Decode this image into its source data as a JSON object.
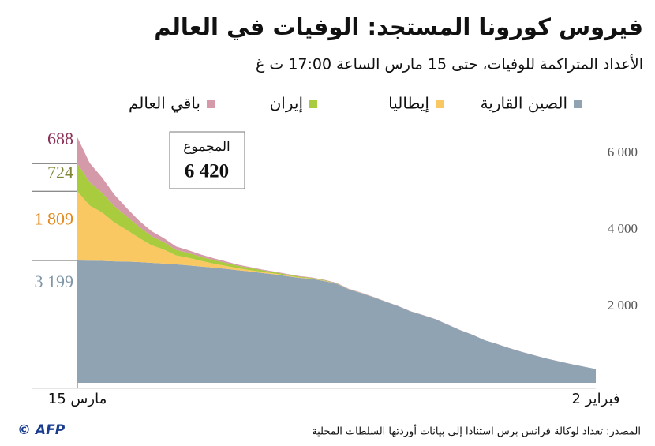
{
  "chart_data": {
    "type": "stacked-area",
    "title": "فيروس كورونا المستجد: الوفيات في العالم",
    "subtitle": "الأعداد المتراكمة للوفيات، حتى 15 مارس الساعة 17:00 ت غ",
    "categories": [
      "2 فبراير",
      null,
      null,
      null,
      null,
      null,
      null,
      null,
      null,
      null,
      null,
      null,
      null,
      null,
      null,
      null,
      null,
      null,
      null,
      null,
      null,
      null,
      null,
      null,
      null,
      null,
      null,
      null,
      null,
      null,
      null,
      null,
      null,
      null,
      null,
      null,
      null,
      null,
      null,
      null,
      null,
      null,
      "15 مارس"
    ],
    "series": [
      {
        "name": "الصين القارية",
        "color": "#8fa3b3",
        "label_color": "#8097a8",
        "values": [
          361,
          425,
          490,
          563,
          636,
          722,
          811,
          908,
          1016,
          1113,
          1259,
          1380,
          1523,
          1665,
          1770,
          1868,
          2004,
          2118,
          2236,
          2345,
          2442,
          2592,
          2663,
          2715,
          2744,
          2788,
          2835,
          2870,
          2912,
          2943,
          2981,
          3012,
          3042,
          3070,
          3097,
          3119,
          3136,
          3158,
          3169,
          3176,
          3189,
          3194,
          3199
        ],
        "value_labels": [
          null,
          null,
          null,
          null,
          null,
          null,
          null,
          null,
          null,
          null,
          null,
          null,
          null,
          null,
          null,
          null,
          null,
          null,
          null,
          null,
          null,
          null,
          null,
          null,
          null,
          null,
          null,
          null,
          null,
          null,
          null,
          null,
          null,
          null,
          null,
          null,
          null,
          null,
          null,
          null,
          null,
          null,
          "3 199"
        ]
      },
      {
        "name": "إيطاليا",
        "color": "#f9c862",
        "label_color": "#e38a1e",
        "values": [
          0,
          0,
          0,
          0,
          0,
          0,
          0,
          0,
          0,
          0,
          0,
          0,
          0,
          0,
          0,
          0,
          0,
          0,
          0,
          1,
          2,
          3,
          7,
          10,
          12,
          17,
          21,
          29,
          34,
          52,
          79,
          107,
          148,
          197,
          233,
          366,
          463,
          631,
          827,
          1016,
          1266,
          1441,
          1809
        ],
        "value_labels": [
          null,
          null,
          null,
          null,
          null,
          null,
          null,
          null,
          null,
          null,
          null,
          null,
          null,
          null,
          null,
          null,
          null,
          null,
          null,
          null,
          null,
          null,
          null,
          null,
          null,
          null,
          null,
          null,
          null,
          null,
          null,
          null,
          null,
          null,
          null,
          null,
          null,
          null,
          null,
          null,
          null,
          null,
          "1 809"
        ]
      },
      {
        "name": "إيران",
        "color": "#a9cc3e",
        "label_color": "#7f8535",
        "values": [
          0,
          0,
          0,
          0,
          0,
          0,
          0,
          0,
          0,
          0,
          0,
          0,
          0,
          0,
          0,
          0,
          0,
          2,
          2,
          4,
          5,
          8,
          12,
          16,
          19,
          26,
          34,
          43,
          54,
          66,
          77,
          92,
          107,
          124,
          145,
          194,
          237,
          291,
          354,
          429,
          514,
          611,
          724
        ]
      },
      {
        "name": "باقي العالم",
        "color": "#d49aaa",
        "label_color": "#8b2f57",
        "values": [
          1,
          1,
          2,
          2,
          2,
          2,
          2,
          2,
          2,
          2,
          2,
          3,
          3,
          4,
          5,
          5,
          5,
          6,
          8,
          9,
          10,
          12,
          14,
          15,
          16,
          17,
          18,
          20,
          25,
          30,
          40,
          50,
          60,
          75,
          90,
          105,
          130,
          160,
          220,
          300,
          400,
          500,
          688
        ]
      }
    ],
    "ylim": [
      0,
      6500
    ],
    "yticks": [
      {
        "value": 2000,
        "label": "2 000"
      },
      {
        "value": 4000,
        "label": "4 000"
      },
      {
        "value": 6000,
        "label": "6 000"
      }
    ],
    "grid": false,
    "annotation": {
      "title": "المجموع",
      "text": "6 420"
    },
    "source": "المصدر: تعداد لوكالة فرانس برس استنادا إلى بيانات أوردتها السلطات المحلية",
    "credit": "© AFP"
  }
}
